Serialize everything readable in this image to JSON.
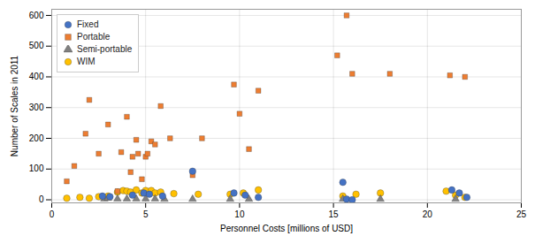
{
  "chart_data": {
    "type": "scatter",
    "xlabel": "Personnel Costs [millions of USD]",
    "ylabel": "Number of Scales in 2011",
    "xlim": [
      0,
      25
    ],
    "ylim": [
      -10,
      620
    ],
    "xticks": [
      0,
      5,
      10,
      15,
      20,
      25
    ],
    "yticks": [
      0,
      100,
      200,
      300,
      400,
      500,
      600
    ],
    "grid": true,
    "legend": "upper left",
    "series": [
      {
        "name": "Fixed",
        "color": "#4472C4",
        "marker": "circle",
        "x": [
          7.5,
          9.7,
          10.3,
          15.5,
          21.3,
          21.7,
          22.1,
          2.7,
          3.1,
          4.3,
          4.9,
          5.2,
          5.9,
          11.0,
          15.7,
          16.0
        ],
        "values": [
          93,
          22,
          15,
          57,
          32,
          22,
          8,
          12,
          10,
          15,
          22,
          18,
          12,
          8,
          2,
          0
        ]
      },
      {
        "name": "Portable",
        "color": "#ED7D31",
        "marker": "square",
        "x": [
          0.8,
          1.2,
          1.8,
          2.0,
          2.5,
          3.0,
          3.5,
          3.7,
          4.0,
          4.2,
          4.3,
          4.5,
          4.6,
          4.8,
          5.0,
          5.1,
          5.3,
          5.5,
          5.8,
          6.3,
          7.5,
          8.0,
          9.7,
          10.0,
          10.5,
          11.0,
          15.2,
          15.7,
          16.0,
          18.0,
          21.2,
          22.0
        ],
        "values": [
          60,
          110,
          215,
          325,
          150,
          245,
          28,
          155,
          270,
          90,
          140,
          195,
          150,
          67,
          140,
          150,
          190,
          180,
          305,
          200,
          80,
          200,
          375,
          280,
          165,
          355,
          470,
          600,
          410,
          410,
          405,
          400
        ]
      },
      {
        "name": "Semi-portable",
        "color": "#808080",
        "marker": "triangle",
        "x": [
          2.8,
          3.0,
          3.5,
          4.0,
          4.5,
          5.0,
          5.5,
          6.0,
          7.5,
          9.5,
          10.5,
          15.5,
          17.5,
          21.5
        ],
        "values": [
          3,
          5,
          3,
          3,
          3,
          3,
          3,
          2,
          2,
          2,
          2,
          2,
          2,
          2
        ]
      },
      {
        "name": "WIM",
        "color": "#FFC000",
        "marker": "circle",
        "x": [
          0.8,
          1.5,
          2.0,
          2.5,
          3.0,
          3.5,
          3.8,
          4.0,
          4.2,
          4.5,
          4.8,
          5.0,
          5.3,
          5.5,
          5.8,
          6.5,
          7.8,
          9.5,
          10.2,
          11.0,
          15.5,
          16.2,
          17.5,
          21.0,
          21.5,
          22.0
        ],
        "values": [
          5,
          8,
          5,
          10,
          12,
          25,
          30,
          28,
          25,
          32,
          22,
          30,
          30,
          22,
          25,
          20,
          18,
          18,
          22,
          32,
          12,
          18,
          22,
          28,
          15,
          8
        ]
      }
    ]
  }
}
